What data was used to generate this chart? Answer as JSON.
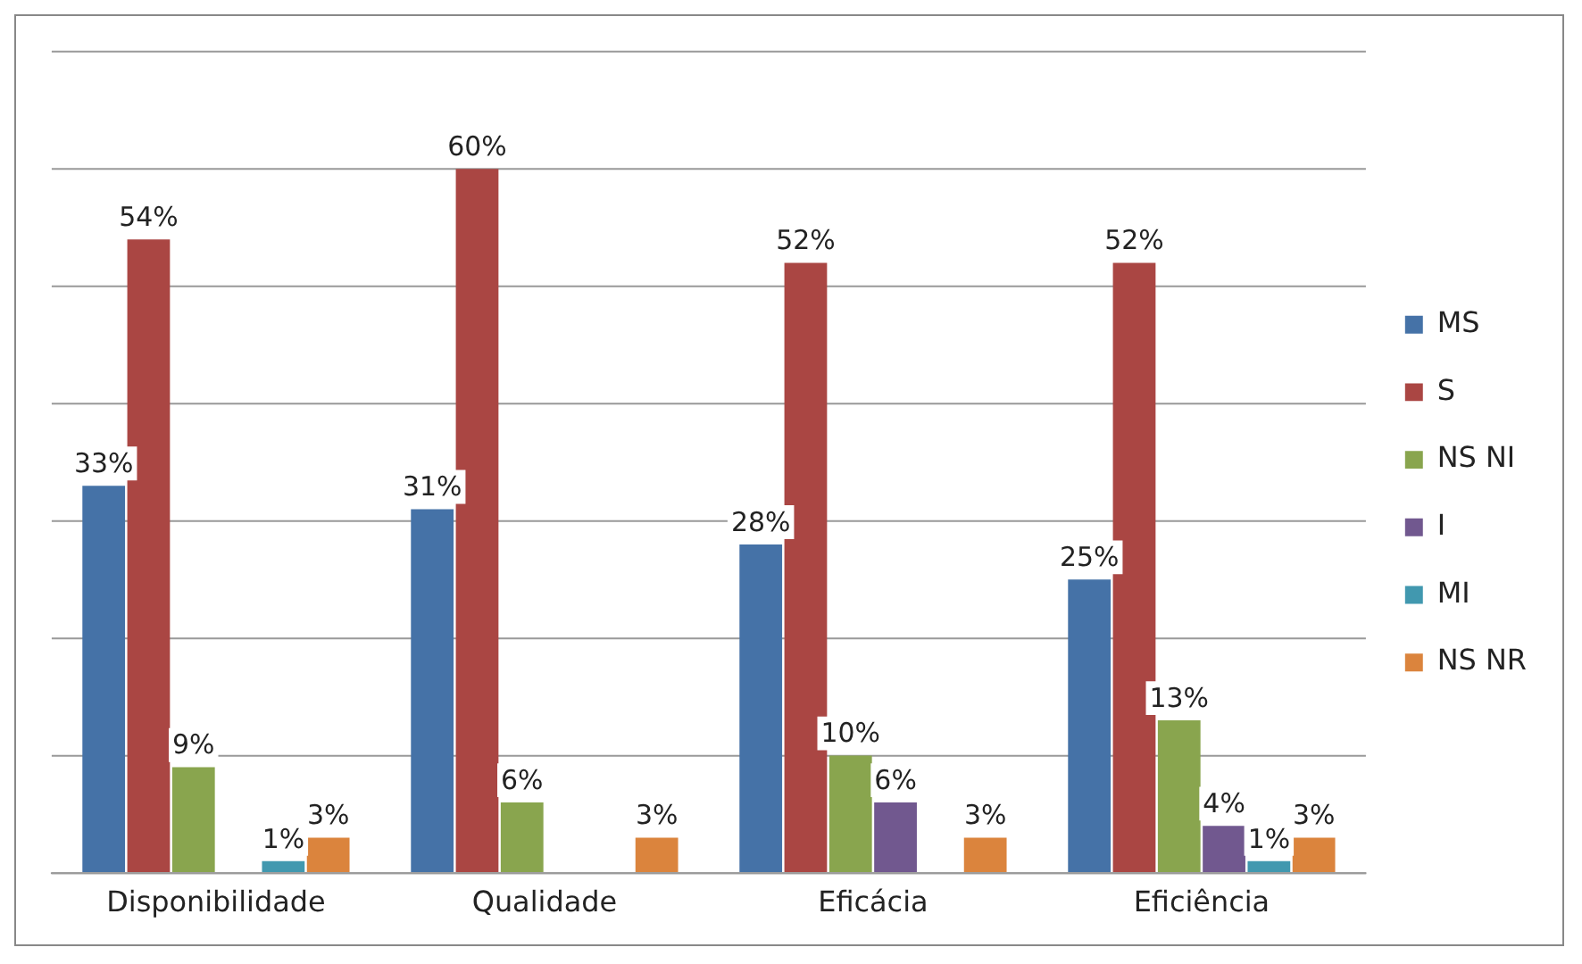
{
  "chart_data": {
    "type": "bar",
    "categories": [
      "Disponibilidade",
      "Qualidade",
      "Eficácia",
      "Eficiência"
    ],
    "series": [
      {
        "name": "MS",
        "color": "#4572a7",
        "values": [
          33,
          31,
          28,
          25
        ],
        "value_labels": [
          "33%",
          "31%",
          "28%",
          "25%"
        ]
      },
      {
        "name": "S",
        "color": "#aa4643",
        "values": [
          54,
          60,
          52,
          52
        ],
        "value_labels": [
          "54%",
          "60%",
          "52%",
          "52%"
        ]
      },
      {
        "name": "NS NI",
        "color": "#89a54e",
        "values": [
          9,
          6,
          10,
          13
        ],
        "value_labels": [
          "9%",
          "6%",
          "10%",
          "13%"
        ]
      },
      {
        "name": "I",
        "color": "#71588f",
        "values": [
          null,
          null,
          6,
          4
        ],
        "value_labels": [
          null,
          null,
          "6%",
          "4%"
        ]
      },
      {
        "name": "MI",
        "color": "#4198af",
        "values": [
          1,
          null,
          null,
          1
        ],
        "value_labels": [
          "1%",
          null,
          null,
          "1%"
        ]
      },
      {
        "name": "NS NR",
        "color": "#db843d",
        "values": [
          3,
          3,
          3,
          3
        ],
        "value_labels": [
          "3%",
          "3%",
          "3%",
          "3%"
        ]
      }
    ],
    "ylim": [
      0,
      70
    ],
    "yticks": [
      {
        "value": 0,
        "label": null
      },
      {
        "value": 10,
        "label": null
      },
      {
        "value": 20,
        "label": null
      },
      {
        "value": 30,
        "label": null
      },
      {
        "value": 40,
        "label": null
      },
      {
        "value": 50,
        "label": null
      },
      {
        "value": 60,
        "label": null
      },
      {
        "value": 70,
        "label": null
      }
    ],
    "tick_labels": "x",
    "grid": "y",
    "legend": "right"
  }
}
